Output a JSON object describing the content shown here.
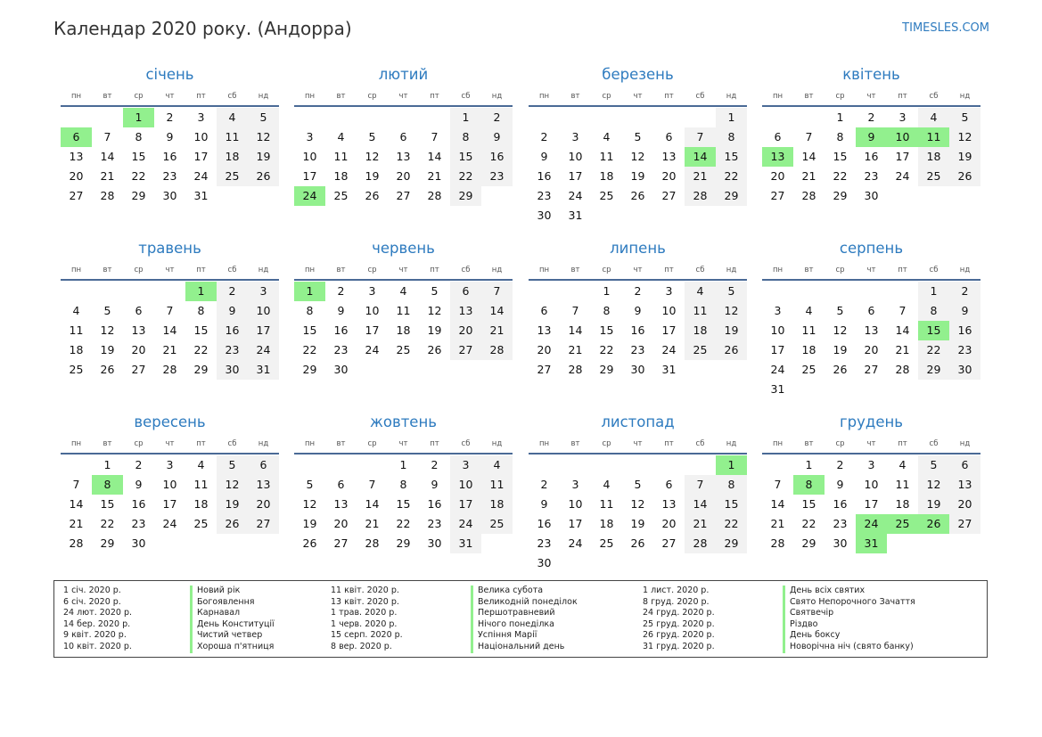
{
  "header": {
    "title": "Календар 2020 року. (Андорра)",
    "site": "TIMESLES.COM"
  },
  "weekdays": [
    "пн",
    "вт",
    "ср",
    "чт",
    "пт",
    "сб",
    "нд"
  ],
  "months": [
    {
      "name": "січень",
      "days": 31,
      "start": 2,
      "holidays": [
        1,
        6
      ]
    },
    {
      "name": "лютий",
      "days": 29,
      "start": 5,
      "holidays": [
        24
      ]
    },
    {
      "name": "березень",
      "days": 31,
      "start": 6,
      "holidays": [
        14
      ]
    },
    {
      "name": "квітень",
      "days": 30,
      "start": 2,
      "holidays": [
        9,
        10,
        11,
        13
      ]
    },
    {
      "name": "травень",
      "days": 31,
      "start": 4,
      "holidays": [
        1
      ]
    },
    {
      "name": "червень",
      "days": 30,
      "start": 0,
      "holidays": [
        1
      ]
    },
    {
      "name": "липень",
      "days": 31,
      "start": 2,
      "holidays": []
    },
    {
      "name": "серпень",
      "days": 31,
      "start": 5,
      "holidays": [
        15
      ]
    },
    {
      "name": "вересень",
      "days": 30,
      "start": 1,
      "holidays": [
        8
      ]
    },
    {
      "name": "жовтень",
      "days": 31,
      "start": 3,
      "holidays": []
    },
    {
      "name": "листопад",
      "days": 30,
      "start": 6,
      "holidays": [
        1
      ]
    },
    {
      "name": "грудень",
      "days": 31,
      "start": 1,
      "holidays": [
        8,
        24,
        25,
        26,
        31
      ]
    }
  ],
  "legend": [
    {
      "date": "1 січ. 2020 р.",
      "name": "Новий рік"
    },
    {
      "date": "6 січ. 2020 р.",
      "name": "Богоявлення"
    },
    {
      "date": "24 лют. 2020 р.",
      "name": "Карнавал"
    },
    {
      "date": "14 бер. 2020 р.",
      "name": "День Конституції"
    },
    {
      "date": "9 квіт. 2020 р.",
      "name": "Чистий четвер"
    },
    {
      "date": "10 квіт. 2020 р.",
      "name": "Хороша п'ятниця"
    },
    {
      "date": "11 квіт. 2020 р.",
      "name": "Велика субота"
    },
    {
      "date": "13 квіт. 2020 р.",
      "name": "Великодній понеділок"
    },
    {
      "date": "1 трав. 2020 р.",
      "name": "Першотравневий"
    },
    {
      "date": "1 черв. 2020 р.",
      "name": "Нічого понеділка"
    },
    {
      "date": "15 серп. 2020 р.",
      "name": "Успіння Марії"
    },
    {
      "date": "8 вер. 2020 р.",
      "name": "Національний день"
    },
    {
      "date": "1 лист. 2020 р.",
      "name": "День всіх святих"
    },
    {
      "date": "8 груд. 2020 р.",
      "name": "Свято Непорочного Зачаття"
    },
    {
      "date": "24 груд. 2020 р.",
      "name": "Святвечір"
    },
    {
      "date": "25 груд. 2020 р.",
      "name": "Різдво"
    },
    {
      "date": "26 груд. 2020 р.",
      "name": "День боксу"
    },
    {
      "date": "31 груд. 2020 р.",
      "name": "Новорічна ніч (свято банку)"
    }
  ],
  "colors": {
    "accent": "#2e7bbf",
    "holiday": "#92f08e",
    "weekend": "#f2f2f2",
    "rule": "#4a6a96"
  }
}
